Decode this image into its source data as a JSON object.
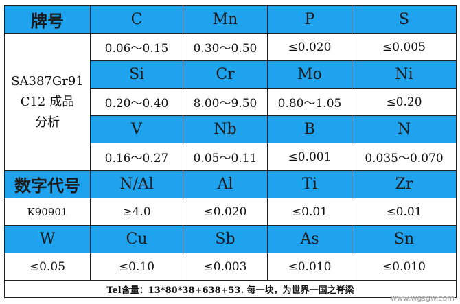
{
  "table": {
    "grade_header": "牌号",
    "grade_lines": [
      "SA387Gr91",
      "C12 成品",
      "分析"
    ],
    "code_header": "数字代号",
    "code_value": "K90901",
    "rows": [
      {
        "elements": [
          "C",
          "Mn",
          "P",
          "S"
        ],
        "values": [
          "0.06～0.15",
          "0.30～0.50",
          "≤0.020",
          "≤0.005"
        ]
      },
      {
        "elements": [
          "Si",
          "Cr",
          "Mo",
          "Ni"
        ],
        "values": [
          "0.20～0.40",
          "8.00～9.50",
          "0.80～1.05",
          "≤0.20"
        ]
      },
      {
        "elements": [
          "V",
          "Nb",
          "B",
          "N"
        ],
        "values": [
          "0.16～0.27",
          "0.05～0.11",
          "≤0.001",
          "0.035～0.070"
        ]
      },
      {
        "elements": [
          "N/Al",
          "Al",
          "Ti",
          "Zr"
        ],
        "values": [
          "≥4.0",
          "≤0.020",
          "≤0.01",
          "≤0.01"
        ]
      },
      {
        "elements": [
          "W",
          "Cu",
          "Sb",
          "As",
          "Sn"
        ],
        "values": [
          "≤0.05",
          "≤0.10",
          "≤0.003",
          "≤0.010",
          "≤0.010"
        ]
      }
    ],
    "footer_note": "Tel含量：13*80*38+638+53. 每一块，为世界一国之脊梁"
  },
  "watermark": "www.wgsgw.com",
  "colors": {
    "header_bg": "#1fa3ee",
    "border": "#222222"
  }
}
